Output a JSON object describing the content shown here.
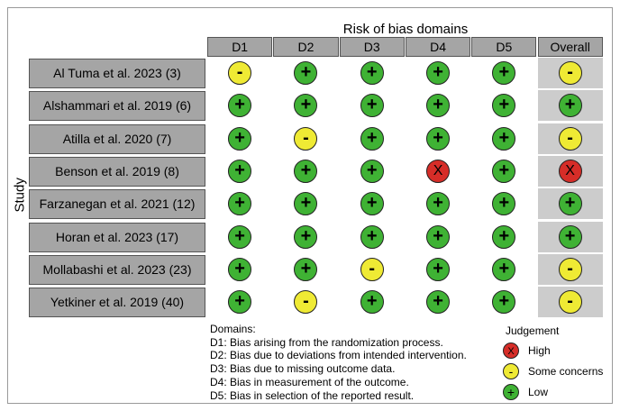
{
  "header": {
    "title": "Risk of bias domains"
  },
  "y_axis_label": "Study",
  "columns": [
    "D1",
    "D2",
    "D3",
    "D4",
    "D5",
    "Overall"
  ],
  "studies": [
    {
      "name": "Al Tuma et al. 2023 (3)",
      "judgements": [
        "some",
        "low",
        "low",
        "low",
        "low",
        "some"
      ]
    },
    {
      "name": "Alshammari et al. 2019 (6)",
      "judgements": [
        "low",
        "low",
        "low",
        "low",
        "low",
        "low"
      ]
    },
    {
      "name": "Atilla et al. 2020 (7)",
      "judgements": [
        "low",
        "some",
        "low",
        "low",
        "low",
        "some"
      ]
    },
    {
      "name": "Benson et al. 2019 (8)",
      "judgements": [
        "low",
        "low",
        "low",
        "high",
        "low",
        "high"
      ]
    },
    {
      "name": "Farzanegan et al. 2021 (12)",
      "judgements": [
        "low",
        "low",
        "low",
        "low",
        "low",
        "low"
      ]
    },
    {
      "name": "Horan et al. 2023 (17)",
      "judgements": [
        "low",
        "low",
        "low",
        "low",
        "low",
        "low"
      ]
    },
    {
      "name": "Mollabashi et al. 2023 (23)",
      "judgements": [
        "low",
        "low",
        "some",
        "low",
        "low",
        "some"
      ]
    },
    {
      "name": "Yetkiner et al. 2019 (40)",
      "judgements": [
        "low",
        "some",
        "low",
        "low",
        "low",
        "some"
      ]
    }
  ],
  "symbols": {
    "low": "+",
    "some": "-",
    "high": "X"
  },
  "colors": {
    "low": "#3fb234",
    "some": "#efea34",
    "high": "#d62d28",
    "header_grey": "#a5a5a5",
    "overall_grey": "#cccccc"
  },
  "domains_legend": {
    "title": "Domains:",
    "items": [
      "D1: Bias arising from the randomization process.",
      "D2: Bias due to deviations from intended intervention.",
      "D3: Bias due to missing outcome data.",
      "D4: Bias in measurement of the outcome.",
      "D5: Bias in selection of the reported result."
    ]
  },
  "judgement_legend": {
    "title": "Judgement",
    "items": [
      {
        "key": "high",
        "label": "High"
      },
      {
        "key": "some",
        "label": "Some concerns"
      },
      {
        "key": "low",
        "label": "Low"
      }
    ]
  }
}
